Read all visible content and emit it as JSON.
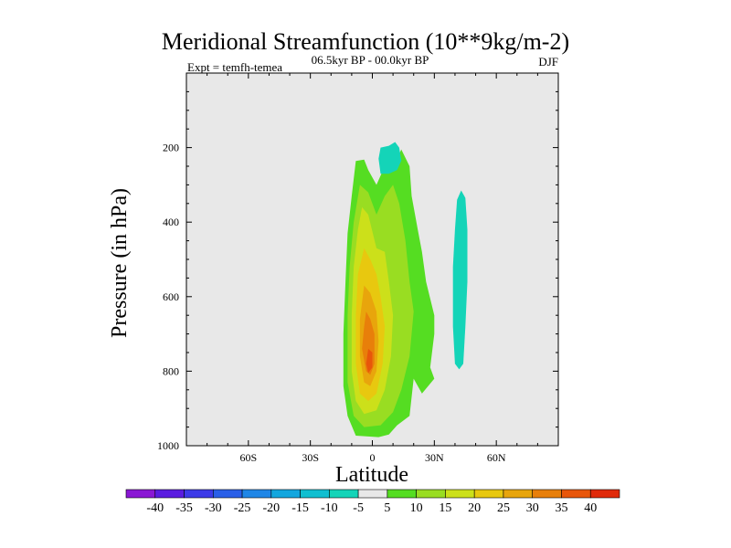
{
  "chart_data": {
    "type": "heatmap",
    "title": "Meridional Streamfunction (10**9kg/m-2)",
    "experiment": "Expt = temfh-temea",
    "period": "06.5kyr BP - 00.0kyr BP",
    "season": "DJF",
    "xlabel": "Latitude",
    "ylabel": "Pressure (in hPa)",
    "xlim": [
      -90,
      90
    ],
    "ylim": [
      1000,
      0
    ],
    "x_ticks": [
      {
        "value": -60,
        "label": "60S"
      },
      {
        "value": -30,
        "label": "30S"
      },
      {
        "value": 0,
        "label": "0"
      },
      {
        "value": 30,
        "label": "30N"
      },
      {
        "value": 60,
        "label": "60N"
      }
    ],
    "y_ticks": [
      {
        "value": 200,
        "label": "200"
      },
      {
        "value": 400,
        "label": "400"
      },
      {
        "value": 600,
        "label": "600"
      },
      {
        "value": 800,
        "label": "800"
      },
      {
        "value": 1000,
        "label": "1000"
      }
    ],
    "background_color": "#e8e8e8",
    "colorbar": {
      "labels": [
        "-40",
        "-35",
        "-30",
        "-25",
        "-20",
        "-15",
        "-10",
        "-5",
        "5",
        "10",
        "15",
        "20",
        "25",
        "30",
        "35",
        "40"
      ],
      "colors": [
        "#8a17d4",
        "#5a1ce0",
        "#3d3ae8",
        "#2a5fe8",
        "#1f86e6",
        "#13a6de",
        "#10bfd0",
        "#14d4b8",
        "#e8e8e8",
        "#55dd22",
        "#99dd22",
        "#cce01a",
        "#e8c80f",
        "#e8a50c",
        "#e87f0a",
        "#e8560a",
        "#e02a0a"
      ]
    },
    "regions": [
      {
        "name": "positive-5-10",
        "level": 5,
        "color": "#55dd22",
        "points": [
          [
            -8,
            236
          ],
          [
            -4,
            232
          ],
          [
            -2,
            260
          ],
          [
            2,
            300
          ],
          [
            6,
            250
          ],
          [
            12,
            230
          ],
          [
            14,
            205
          ],
          [
            18,
            250
          ],
          [
            19,
            330
          ],
          [
            22,
            420
          ],
          [
            24,
            480
          ],
          [
            26,
            560
          ],
          [
            30,
            650
          ],
          [
            30,
            700
          ],
          [
            28,
            790
          ],
          [
            30,
            820
          ],
          [
            24,
            860
          ],
          [
            20,
            820
          ],
          [
            18,
            920
          ],
          [
            12,
            945
          ],
          [
            8,
            970
          ],
          [
            3,
            977
          ],
          [
            -8,
            973
          ],
          [
            -12,
            920
          ],
          [
            -14,
            840
          ],
          [
            -14,
            700
          ],
          [
            -13,
            560
          ],
          [
            -12,
            430
          ],
          [
            -10,
            330
          ]
        ]
      },
      {
        "name": "positive-10-15",
        "level": 10,
        "color": "#99dd22",
        "points": [
          [
            -6,
            300
          ],
          [
            -2,
            320
          ],
          [
            2,
            380
          ],
          [
            6,
            330
          ],
          [
            10,
            300
          ],
          [
            13,
            350
          ],
          [
            16,
            450
          ],
          [
            18,
            560
          ],
          [
            20,
            640
          ],
          [
            18,
            760
          ],
          [
            14,
            850
          ],
          [
            10,
            910
          ],
          [
            4,
            945
          ],
          [
            -4,
            950
          ],
          [
            -9,
            920
          ],
          [
            -12,
            830
          ],
          [
            -12,
            650
          ],
          [
            -11,
            520
          ],
          [
            -9,
            400
          ]
        ]
      },
      {
        "name": "positive-15-20",
        "level": 15,
        "color": "#cce01a",
        "points": [
          [
            -5,
            360
          ],
          [
            -2,
            380
          ],
          [
            2,
            470
          ],
          [
            6,
            480
          ],
          [
            8,
            560
          ],
          [
            10,
            650
          ],
          [
            9,
            760
          ],
          [
            6,
            850
          ],
          [
            2,
            905
          ],
          [
            -4,
            915
          ],
          [
            -8,
            880
          ],
          [
            -10,
            800
          ],
          [
            -10,
            650
          ],
          [
            -9,
            520
          ],
          [
            -7,
            420
          ]
        ]
      },
      {
        "name": "positive-20-25",
        "level": 20,
        "color": "#e8c80f",
        "points": [
          [
            -4,
            470
          ],
          [
            -1,
            500
          ],
          [
            2,
            540
          ],
          [
            4,
            600
          ],
          [
            6,
            680
          ],
          [
            5,
            780
          ],
          [
            2,
            860
          ],
          [
            -2,
            880
          ],
          [
            -6,
            860
          ],
          [
            -8,
            780
          ],
          [
            -8,
            650
          ],
          [
            -7,
            540
          ]
        ]
      },
      {
        "name": "positive-25-30",
        "level": 25,
        "color": "#e8a50c",
        "points": [
          [
            -4,
            570
          ],
          [
            -1,
            590
          ],
          [
            2,
            640
          ],
          [
            3,
            720
          ],
          [
            2,
            800
          ],
          [
            -1,
            840
          ],
          [
            -4,
            830
          ],
          [
            -6,
            760
          ],
          [
            -6,
            660
          ]
        ]
      },
      {
        "name": "positive-30-35",
        "level": 30,
        "color": "#e87f0a",
        "points": [
          [
            -3,
            640
          ],
          [
            -1,
            660
          ],
          [
            1,
            700
          ],
          [
            1,
            780
          ],
          [
            -1,
            810
          ],
          [
            -3,
            800
          ],
          [
            -5,
            740
          ],
          [
            -4,
            680
          ]
        ]
      },
      {
        "name": "positive-35-40",
        "level": 35,
        "color": "#e8560a",
        "points": [
          [
            -2,
            740
          ],
          [
            0,
            750
          ],
          [
            0,
            790
          ],
          [
            -2,
            805
          ],
          [
            -3,
            780
          ]
        ]
      },
      {
        "name": "negative-upper",
        "level": -5,
        "color": "#14d4b8",
        "points": [
          [
            4,
            200
          ],
          [
            8,
            195
          ],
          [
            11,
            185
          ],
          [
            13,
            200
          ],
          [
            14,
            235
          ],
          [
            12,
            260
          ],
          [
            8,
            270
          ],
          [
            4,
            270
          ],
          [
            3,
            230
          ]
        ]
      },
      {
        "name": "negative-north",
        "level": -5,
        "color": "#14d4b8",
        "points": [
          [
            41,
            340
          ],
          [
            43,
            315
          ],
          [
            45,
            335
          ],
          [
            46,
            420
          ],
          [
            46,
            560
          ],
          [
            45,
            680
          ],
          [
            44,
            780
          ],
          [
            42,
            795
          ],
          [
            40,
            780
          ],
          [
            39,
            680
          ],
          [
            39,
            520
          ],
          [
            40,
            420
          ]
        ]
      }
    ]
  }
}
